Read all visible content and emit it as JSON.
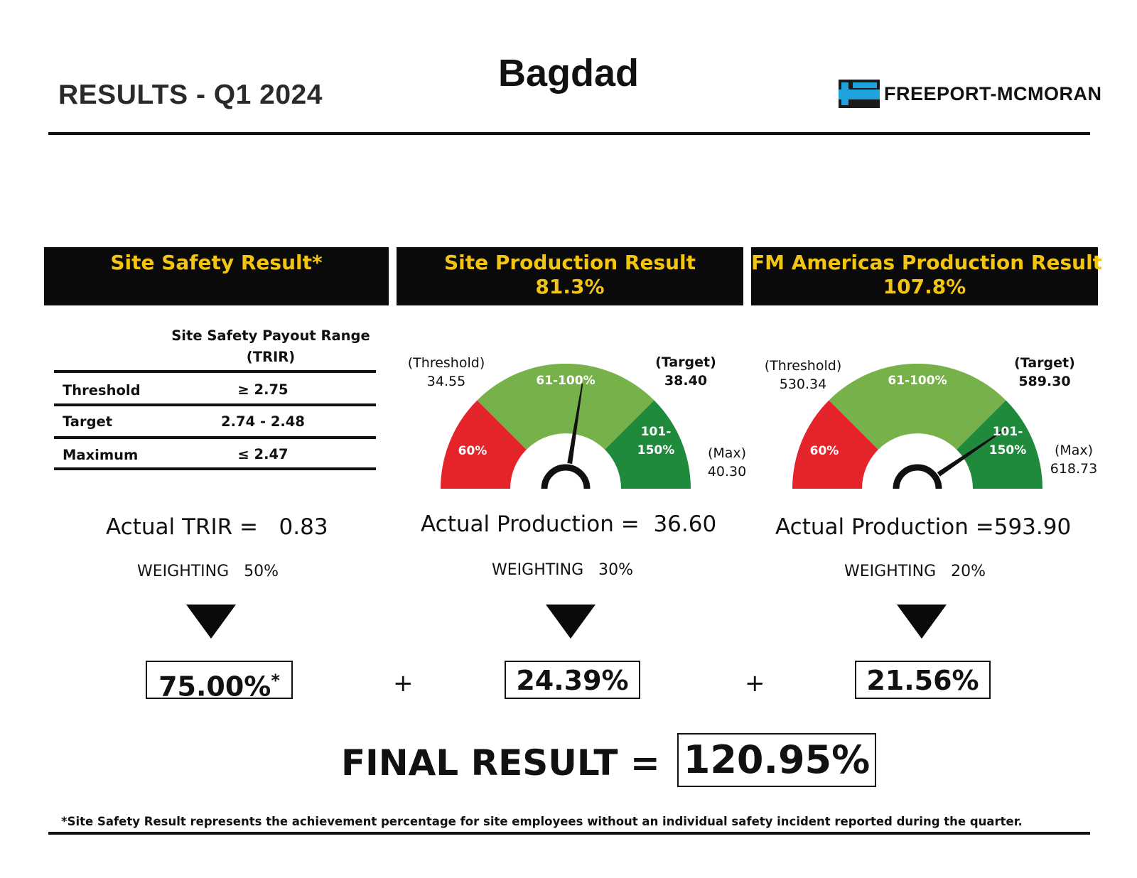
{
  "header": {
    "results_title": "RESULTS - Q1 2024",
    "site_name": "Bagdad",
    "logo_text": "FREEPORT-MCMORAN",
    "logo_mark": "FM"
  },
  "colors": {
    "banner_bg": "#0a0a0a",
    "banner_text": "#f2c514",
    "gauge_red": "#e5232b",
    "gauge_light_green": "#77b14a",
    "gauge_dark_green": "#208a3c",
    "logo_blue": "#1fa3dc"
  },
  "safety": {
    "banner_title": "Site Safety Result*",
    "range_title_line1": "Site Safety Payout Range",
    "range_title_line2": "(TRIR)",
    "rows": [
      {
        "label": "Threshold",
        "value": "≥ 2.75"
      },
      {
        "label": "Target",
        "value": "2.74 - 2.48"
      },
      {
        "label": "Maximum",
        "value": "≤ 2.47"
      }
    ],
    "actual_label": "Actual TRIR =",
    "actual_value": "0.83",
    "weighting_label": "WEIGHTING",
    "weighting_value": "50%",
    "result": "75.00%",
    "result_marker": "*"
  },
  "site_production": {
    "banner_title": "Site Production Result",
    "banner_value": "81.3%",
    "gauge": {
      "threshold_label": "(Threshold)",
      "threshold_value": "34.55",
      "target_label": "(Target)",
      "target_value": "38.40",
      "max_label": "(Max)",
      "max_value": "40.30",
      "zone_red": "60%",
      "zone_mid": "61-100%",
      "zone_high_line1": "101-",
      "zone_high_line2": "150%",
      "needle_fraction": 0.55
    },
    "actual_label": "Actual Production =",
    "actual_value": "36.60",
    "weighting_label": "WEIGHTING",
    "weighting_value": "30%",
    "result": "24.39%"
  },
  "americas_production": {
    "banner_title": "FM Americas Production Result",
    "banner_value": "107.8%",
    "gauge": {
      "threshold_label": "(Threshold)",
      "threshold_value": "530.34",
      "target_label": "(Target)",
      "target_value": "589.30",
      "max_label": "(Max)",
      "max_value": "618.73",
      "zone_red": "60%",
      "zone_mid": "61-100%",
      "zone_high_line1": "101-",
      "zone_high_line2": "150%",
      "needle_fraction": 0.81
    },
    "actual_label": "Actual Production =",
    "actual_value": "593.90",
    "weighting_label": "WEIGHTING",
    "weighting_value": "20%",
    "result": "21.56%"
  },
  "operators": {
    "plus": "+"
  },
  "final": {
    "label": "FINAL RESULT =",
    "value": "120.95%"
  },
  "footnote": "*Site Safety Result represents the achievement percentage for site employees without an individual safety incident reported during the quarter."
}
